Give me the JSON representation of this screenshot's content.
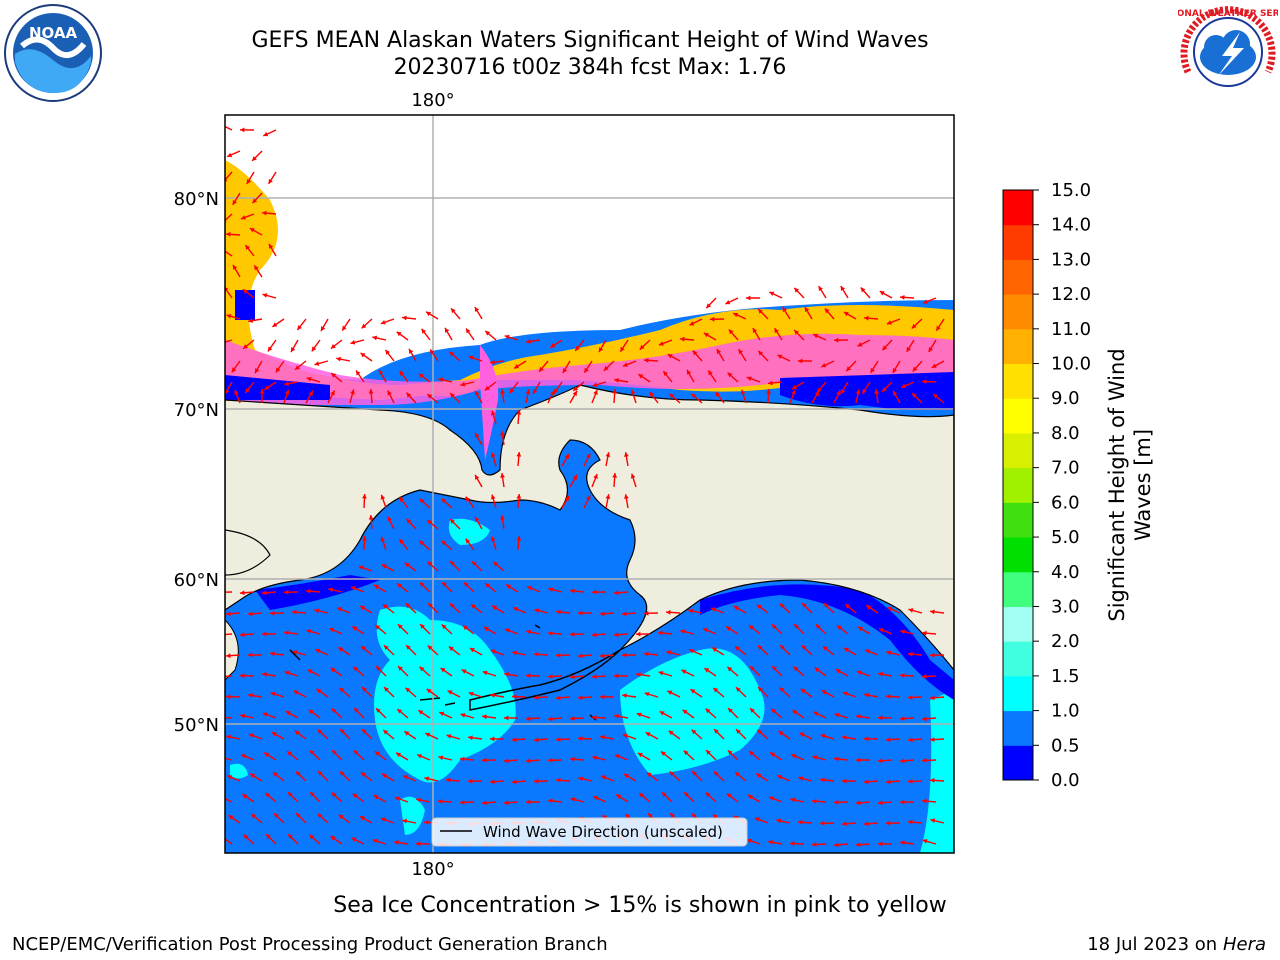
{
  "title": {
    "line1": "GEFS MEAN Alaskan Waters Significant Height of Wind Waves",
    "line2": "20230716 t00z 384h fcst   Max: 1.76"
  },
  "logos": {
    "noaa_text": "NOAA",
    "nws_text": "NATIONAL WEATHER SERVICE"
  },
  "map": {
    "lon_label_top": "180°",
    "lon_label_bottom": "180°",
    "lat_labels": [
      "80°N",
      "70°N",
      "60°N",
      "50°N"
    ],
    "legend_label": "Wind Wave Direction (unscaled)",
    "arrow_color": "#ff0000"
  },
  "colorbar": {
    "label": "Significant Height of Wind Waves [m]",
    "label_line1": "Significant Height of Wind",
    "label_line2": "Waves [m]",
    "ticks": [
      "0.0",
      "0.5",
      "1.0",
      "1.5",
      "2.0",
      "3.0",
      "4.0",
      "5.0",
      "6.0",
      "7.0",
      "8.0",
      "9.0",
      "10.0",
      "11.0",
      "12.0",
      "13.0",
      "14.0",
      "15.0"
    ],
    "colors": [
      "#0000ff",
      "#0a78ff",
      "#00ffff",
      "#40ffe0",
      "#a0fff0",
      "#40ff80",
      "#00e000",
      "#40e010",
      "#a0f000",
      "#d8f000",
      "#ffff00",
      "#ffe000",
      "#ffb000",
      "#ff8c00",
      "#ff6400",
      "#ff3c00",
      "#ff0000"
    ]
  },
  "note": "Sea Ice Concentration > 15% is shown in pink to yellow",
  "footer": {
    "left": "NCEP/EMC/Verification Post Processing Product Generation Branch",
    "right_date": "18 Jul 2023 on ",
    "right_host": "Hera"
  }
}
